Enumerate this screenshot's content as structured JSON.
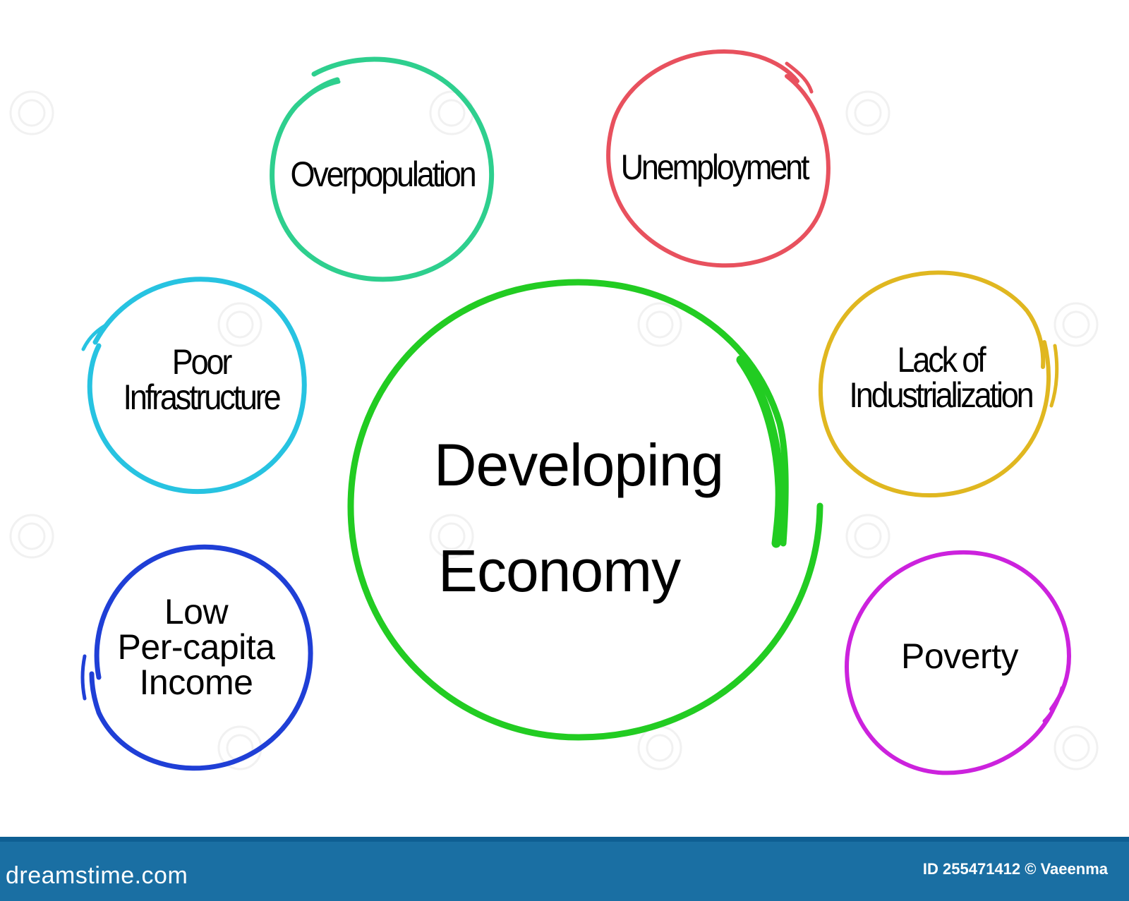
{
  "center": {
    "line1": "Developing",
    "line2": "Economy",
    "color": "#22cc22"
  },
  "nodes": [
    {
      "id": "overpopulation",
      "lines": [
        "Overpopulation"
      ],
      "color": "#2ecf8e",
      "icon": "circle-outline"
    },
    {
      "id": "unemployment",
      "lines": [
        "Unemployment"
      ],
      "color": "#e8515e",
      "icon": "circle-outline"
    },
    {
      "id": "poor-infrastructure",
      "lines": [
        "Poor",
        "Infrastructure"
      ],
      "color": "#27c3e1",
      "icon": "circle-outline"
    },
    {
      "id": "lack-of-industrialization",
      "lines": [
        "Lack of",
        "Industrialization"
      ],
      "color": "#e0b720",
      "icon": "circle-outline"
    },
    {
      "id": "low-per-capita-income",
      "lines": [
        "Low",
        "Per-capita",
        "Income"
      ],
      "color": "#1f3fd6",
      "icon": "circle-outline"
    },
    {
      "id": "poverty",
      "lines": [
        "Poverty"
      ],
      "color": "#cc22dd",
      "icon": "circle-outline"
    }
  ],
  "footer": {
    "brand": "dreamstime.com",
    "credit": "ID 255471412 © Vaeenma",
    "background": "#1a6fa3",
    "text_color": "#ffffff"
  }
}
